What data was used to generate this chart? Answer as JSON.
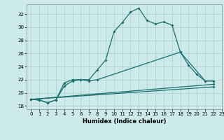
{
  "xlabel": "Humidex (Indice chaleur)",
  "bg_color": "#cceaea",
  "grid_color": "#aacccc",
  "line_color": "#1a6e6e",
  "xlim": [
    -0.5,
    23
  ],
  "ylim": [
    17.5,
    33.5
  ],
  "yticks": [
    18,
    20,
    22,
    24,
    26,
    28,
    30,
    32
  ],
  "xticks": [
    0,
    1,
    2,
    3,
    4,
    5,
    6,
    7,
    8,
    9,
    10,
    11,
    12,
    13,
    14,
    15,
    16,
    17,
    18,
    19,
    20,
    21,
    22,
    23
  ],
  "line1_x": [
    0,
    1,
    2,
    3,
    4,
    5,
    6,
    7,
    8,
    9,
    10,
    11,
    12,
    13,
    14,
    15,
    16,
    17,
    18,
    21,
    22
  ],
  "line1_y": [
    19.0,
    18.9,
    18.5,
    18.9,
    21.5,
    22.0,
    22.0,
    22.0,
    23.5,
    25.0,
    29.3,
    30.7,
    32.3,
    32.9,
    31.0,
    30.5,
    30.8,
    30.3,
    26.2,
    21.8,
    21.8
  ],
  "line2_x": [
    0,
    1,
    2,
    3,
    4,
    5,
    6,
    7,
    8,
    18,
    19,
    20,
    21,
    22
  ],
  "line2_y": [
    19.0,
    18.9,
    18.5,
    18.9,
    21.0,
    21.8,
    22.0,
    21.8,
    22.0,
    26.2,
    24.2,
    22.8,
    21.8,
    21.8
  ],
  "line3_x": [
    0,
    22
  ],
  "line3_y": [
    19.0,
    21.3
  ],
  "line4_x": [
    0,
    22
  ],
  "line4_y": [
    19.0,
    20.9
  ]
}
